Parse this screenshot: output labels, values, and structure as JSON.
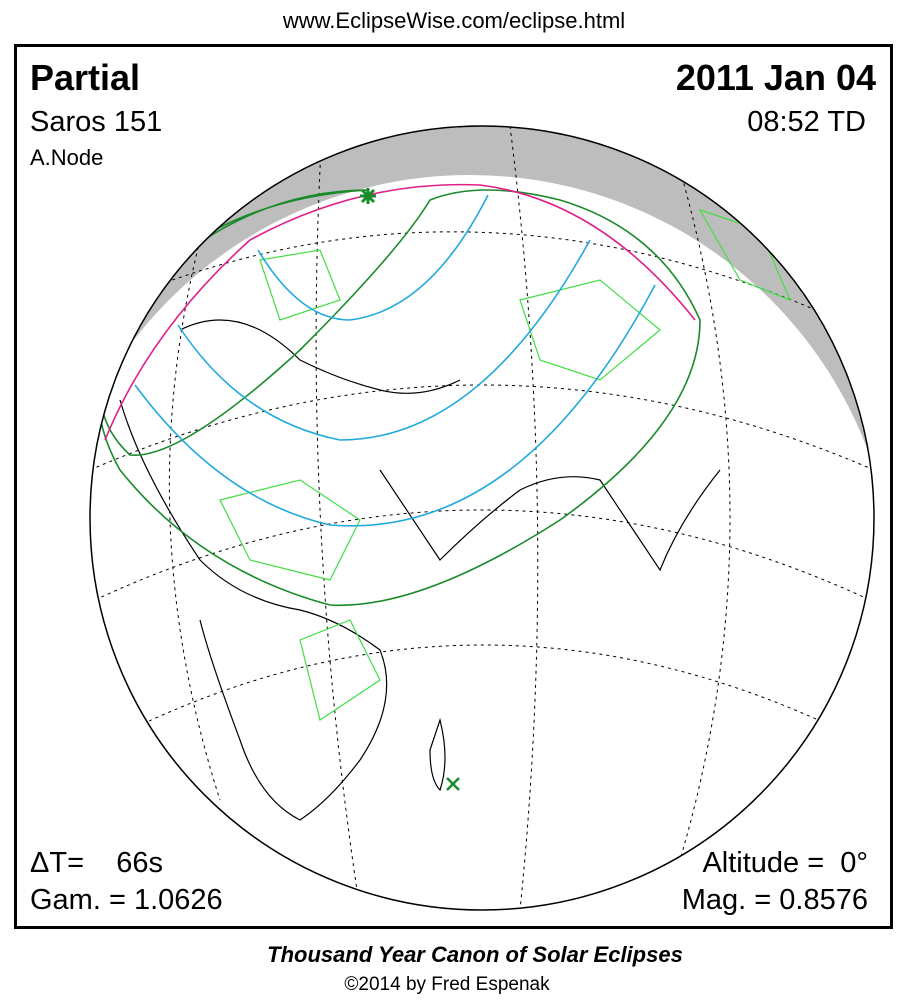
{
  "header": {
    "url": "www.EclipseWise.com/eclipse.html"
  },
  "panel": {
    "eclipse_type": "Partial",
    "saros": "Saros 151",
    "node": "A.Node",
    "date": "2011 Jan 04",
    "time": "08:52 TD",
    "delta_t": "ΔT=    66s",
    "gamma": "Gam. = 1.0626",
    "altitude": "Altitude =  0°",
    "magnitude": "Mag. = 0.8576"
  },
  "footer": {
    "title": "Thousand Year Canon of Solar Eclipses",
    "credit": "©2014 by Fred Espenak"
  }
}
